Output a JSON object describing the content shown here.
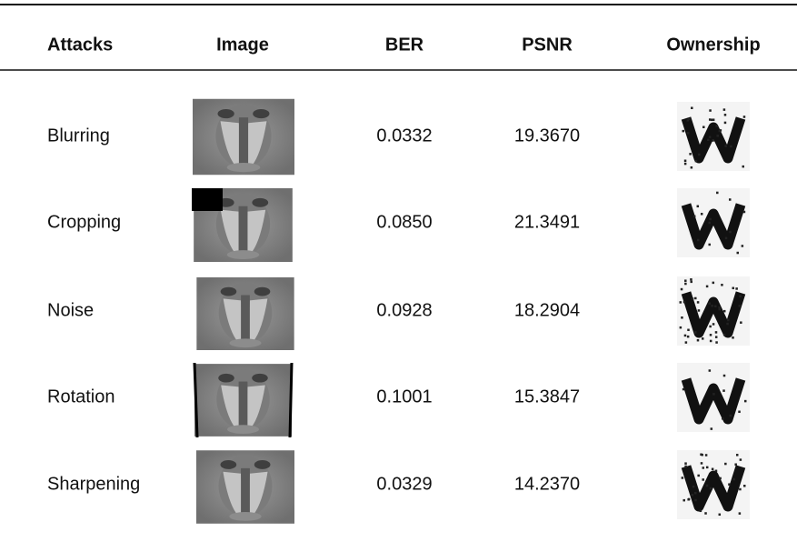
{
  "table": {
    "columns": [
      "Attacks",
      "Image",
      "BER",
      "PSNR",
      "Ownership"
    ],
    "rows": [
      [
        "Blurring",
        "0.0332",
        "19.3670"
      ],
      [
        "Cropping",
        "0.0850",
        "21.3491"
      ],
      [
        "Noise",
        "0.0928",
        "18.2904"
      ],
      [
        "Rotation",
        "0.1001",
        "15.3847"
      ],
      [
        "Sharpening",
        "0.0329",
        "14.2370"
      ]
    ]
  }
}
